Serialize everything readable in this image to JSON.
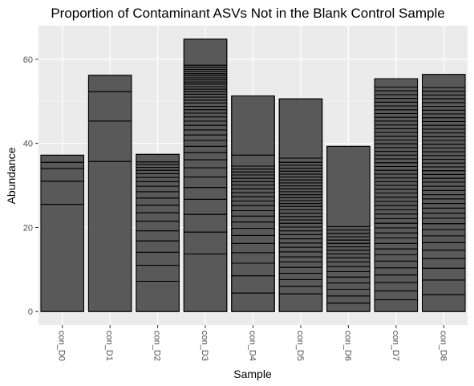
{
  "chart_data": {
    "type": "bar",
    "stacked": true,
    "title": "Proportion of Contaminant ASVs Not in the Blank Control Sample",
    "xlabel": "Sample",
    "ylabel": "Abundance",
    "categories": [
      "con_D0",
      "con_D1",
      "con_D2",
      "con_D3",
      "con_D4",
      "con_D5",
      "con_D6",
      "con_D7",
      "con_D8"
    ],
    "totals": [
      37.2,
      56.2,
      37.4,
      64.8,
      51.3,
      50.6,
      39.3,
      55.4,
      56.4
    ],
    "segment_boundaries": [
      [
        25.5,
        31.0,
        34.0,
        35.5
      ],
      [
        35.7,
        45.3,
        52.3
      ],
      [
        7.2,
        11.0,
        14.1,
        16.8,
        19.2,
        21.5,
        23.5,
        25.3,
        27.0,
        28.5,
        29.8,
        30.9,
        31.9,
        32.8,
        33.6,
        34.3,
        35.0,
        35.6
      ],
      [
        13.7,
        18.9,
        23.1,
        26.7,
        29.5,
        32.0,
        34.2,
        36.1,
        37.8,
        39.3,
        40.7,
        42.0,
        43.2,
        44.3,
        45.3,
        46.3,
        47.2,
        48.0,
        48.8,
        49.6,
        50.3,
        51.0,
        51.7,
        52.3,
        52.9,
        53.5,
        54.1,
        54.6,
        55.1,
        55.6,
        56.1,
        56.6,
        57.1,
        57.6,
        58.1,
        58.6
      ],
      [
        4.4,
        8.5,
        11.5,
        14.0,
        16.2,
        18.1,
        19.8,
        21.3,
        22.7,
        24.0,
        25.2,
        26.3,
        27.3,
        28.3,
        29.2,
        30.1,
        30.9,
        31.7,
        32.5,
        33.2,
        33.9,
        34.6,
        37.2
      ],
      [
        4.2,
        6.0,
        7.6,
        9.1,
        10.5,
        11.8,
        13.0,
        14.2,
        15.3,
        16.3,
        17.3,
        18.3,
        19.2,
        20.1,
        21.0,
        21.8,
        22.6,
        23.4,
        24.2,
        25.0,
        25.7,
        26.4,
        27.1,
        27.8,
        28.5,
        29.2,
        29.9,
        30.6,
        31.3,
        32.0,
        32.7,
        33.4,
        34.1,
        34.8,
        35.5,
        36.5
      ],
      [
        2.0,
        3.7,
        5.3,
        6.8,
        8.2,
        9.5,
        10.7,
        11.8,
        12.8,
        13.7,
        14.6,
        15.4,
        16.2,
        17.0,
        17.8,
        18.6,
        19.4,
        20.2
      ],
      [
        2.8,
        4.9,
        6.9,
        8.7,
        10.4,
        12.0,
        13.5,
        14.9,
        16.2,
        17.5,
        18.7,
        19.9,
        21.0,
        22.1,
        23.2,
        24.2,
        25.2,
        26.2,
        27.2,
        28.2,
        29.1,
        30.0,
        30.9,
        31.8,
        32.7,
        33.6,
        34.5,
        35.4,
        36.3,
        37.2,
        38.1,
        39.0,
        39.9,
        40.8,
        41.7,
        42.6,
        43.5,
        44.4,
        45.3,
        46.2,
        47.1,
        48.0,
        48.9,
        49.8,
        50.7,
        51.6,
        52.5,
        53.4
      ],
      [
        4.0,
        7.5,
        10.3,
        12.6,
        14.6,
        16.4,
        18.0,
        19.5,
        20.9,
        22.2,
        23.4,
        24.6,
        25.7,
        26.8,
        27.8,
        28.8,
        29.8,
        30.8,
        31.7,
        32.6,
        33.5,
        34.4,
        35.3,
        36.2,
        37.1,
        38.0,
        38.9,
        39.8,
        40.7,
        41.6,
        42.5,
        43.4,
        44.3,
        45.2,
        46.1,
        47.0,
        47.9,
        48.8,
        49.7,
        50.6,
        51.5,
        52.4,
        53.3
      ]
    ],
    "yticks": [
      0,
      20,
      40,
      60
    ],
    "ylim": [
      -3.2,
      68.0
    ],
    "grid": true,
    "legend": "none",
    "colors": {
      "bar_fill": "#595959",
      "bar_outline": "#000000",
      "panel_background": "#ebebeb",
      "grid_major": "#ffffff",
      "grid_minor": "#f5f5f5",
      "tick_label": "#4d4d4d"
    }
  }
}
